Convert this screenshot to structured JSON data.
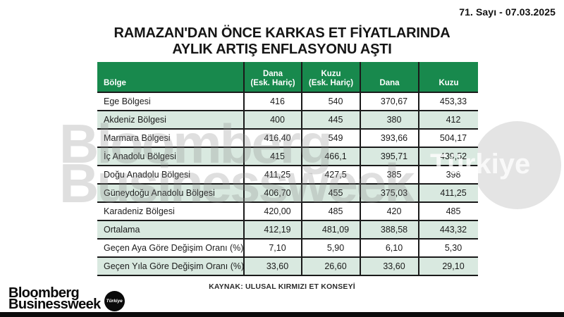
{
  "header": {
    "issue": "71. Sayı - 07.03.2025"
  },
  "title": {
    "line1": "RAMAZAN'DAN ÖNCE KARKAS ET FİYATLARINDA",
    "line2": "AYLIK ARTIŞ ENFLASYONU AŞTI"
  },
  "watermark": {
    "line1": "Bloomberg",
    "line2": "Businessweek",
    "badge": "Türkiye"
  },
  "table": {
    "headers": [
      {
        "top": "Bölge",
        "bottom": ""
      },
      {
        "top": "Dana",
        "bottom": "(Esk. Hariç)"
      },
      {
        "top": "Kuzu",
        "bottom": "(Esk. Hariç)"
      },
      {
        "top": "Dana",
        "bottom": ""
      },
      {
        "top": "Kuzu",
        "bottom": ""
      }
    ]
  },
  "chart_data": {
    "type": "table",
    "title": "RAMAZAN'DAN ÖNCE KARKAS ET FİYATLARINDA AYLIK ARTIŞ ENFLASYONU AŞTI",
    "columns": [
      "Bölge",
      "Dana (Esk. Hariç)",
      "Kuzu (Esk. Hariç)",
      "Dana",
      "Kuzu"
    ],
    "rows": [
      [
        "Ege Bölgesi",
        "416",
        "540",
        "370,67",
        "453,33"
      ],
      [
        "Akdeniz Bölgesi",
        "400",
        "445",
        "380",
        "412"
      ],
      [
        "Marmara Bölgesi",
        "416,40",
        "549",
        "393,66",
        "504,17"
      ],
      [
        "İç Anadolu Bölgesi",
        "415",
        "466,1",
        "395,71",
        "439,52"
      ],
      [
        "Doğu Anadolu Bölgesi",
        "411,25",
        "427,5",
        "385",
        "398"
      ],
      [
        "Güneydoğu Anadolu Bölgesi",
        "406,70",
        "455",
        "375,03",
        "411,25"
      ],
      [
        "Karadeniz Bölgesi",
        "420,00",
        "485",
        "420",
        "485"
      ],
      [
        "Ortalama",
        "412,19",
        "481,09",
        "388,58",
        "443,32"
      ],
      [
        "Geçen Aya Göre Değişim Oranı (%)",
        "7,10",
        "5,90",
        "6,10",
        "5,30"
      ],
      [
        "Geçen Yıla Göre Değişim Oranı (%)",
        "33,60",
        "26,60",
        "33,60",
        "29,10"
      ]
    ],
    "source": "KAYNAK: ULUSAL KIRMIZI ET KONSEYİ",
    "layout": {
      "striped": true,
      "header_background": "#18894d",
      "stripe_color": "#d9e9e0"
    }
  },
  "footer": {
    "source": "KAYNAK: ULUSAL KIRMIZI ET KONSEYİ",
    "logo_line1": "Bloomberg",
    "logo_line2": "Businessweek",
    "logo_badge": "Türkiye"
  },
  "colors": {
    "header_green": "#18894d",
    "row_light_green": "#d9e9e0",
    "border_black": "#1a1a1a",
    "watermark_gray": "#e4e4e4",
    "bar_black": "#0c0c0c"
  }
}
